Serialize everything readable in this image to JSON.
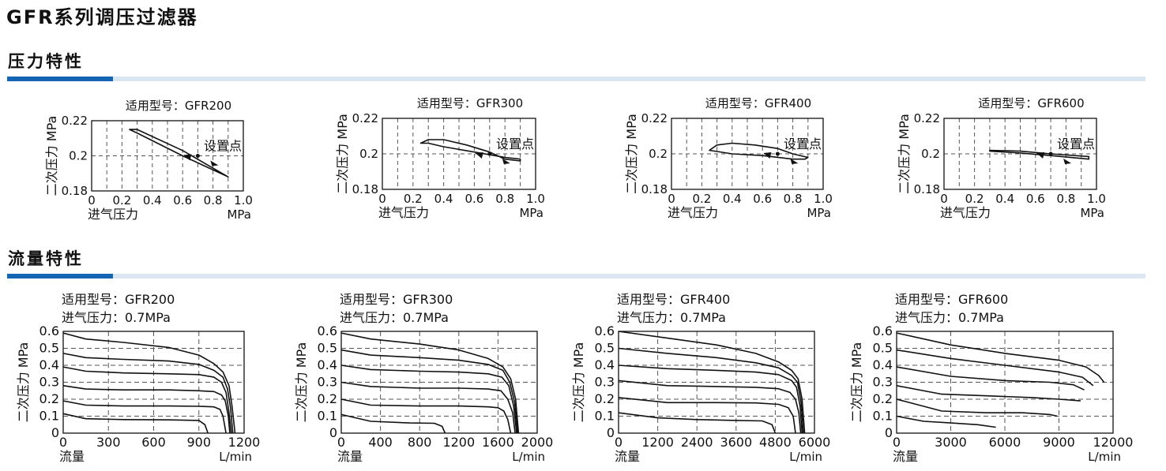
{
  "title": "GFR系列调压过滤器",
  "sections": {
    "pressure": "压力特性",
    "flow": "流量特性"
  },
  "colors": {
    "accent": "#1565b5",
    "bar": "#dbe6f3"
  },
  "chart_data": [
    {
      "type": "line",
      "group": "pressure",
      "model": "适用型号：GFR200",
      "ylabel": "二次压力 MPa",
      "xlabel": "进气压力",
      "xunit": "MPa",
      "xlim": [
        0,
        1.0
      ],
      "ylim": [
        0.18,
        0.22
      ],
      "xticks": [
        "0",
        "0.2",
        "0.4",
        "0.6",
        "0.8",
        "1.0"
      ],
      "yticks": [
        "0.18",
        "0.2",
        "0.22"
      ],
      "annotation": "设置点",
      "set_point": [
        0.7,
        0.2
      ],
      "series": [
        {
          "name": "loop",
          "x": [
            0.9,
            0.6,
            0.3,
            0.25,
            0.3,
            0.6,
            0.9
          ],
          "y": [
            0.188,
            0.2,
            0.213,
            0.215,
            0.215,
            0.203,
            0.188
          ]
        }
      ]
    },
    {
      "type": "line",
      "group": "pressure",
      "model": "适用型号：GFR300",
      "ylabel": "二次压力 MPa",
      "xlabel": "进气压力",
      "xunit": "MPa",
      "xlim": [
        0,
        1.0
      ],
      "ylim": [
        0.18,
        0.22
      ],
      "xticks": [
        "0",
        "0.2",
        "0.4",
        "0.6",
        "0.8",
        "1.0"
      ],
      "yticks": [
        "0.18",
        "0.2",
        "0.22"
      ],
      "annotation": "设置点",
      "set_point": [
        0.7,
        0.2
      ],
      "series": [
        {
          "name": "loop",
          "x": [
            0.25,
            0.3,
            0.4,
            0.55,
            0.7,
            0.8,
            0.9,
            0.9,
            0.8,
            0.6,
            0.4,
            0.3,
            0.25
          ],
          "y": [
            0.206,
            0.208,
            0.208,
            0.205,
            0.201,
            0.197,
            0.196,
            0.197,
            0.198,
            0.201,
            0.204,
            0.206,
            0.206
          ]
        }
      ]
    },
    {
      "type": "line",
      "group": "pressure",
      "model": "适用型号：GFR400",
      "ylabel": "二次压力 MPa",
      "xlabel": "进气压力",
      "xunit": "MPa",
      "xlim": [
        0,
        1.0
      ],
      "ylim": [
        0.18,
        0.22
      ],
      "xticks": [
        "0",
        "0.2",
        "0.4",
        "0.6",
        "0.8",
        "1.0"
      ],
      "yticks": [
        "0.18",
        "0.2",
        "0.22"
      ],
      "annotation": "设置点",
      "set_point": [
        0.7,
        0.2
      ],
      "series": [
        {
          "name": "loop",
          "x": [
            0.25,
            0.3,
            0.4,
            0.55,
            0.7,
            0.8,
            0.9,
            0.88,
            0.8,
            0.6,
            0.4,
            0.25
          ],
          "y": [
            0.202,
            0.205,
            0.206,
            0.205,
            0.203,
            0.2,
            0.198,
            0.197,
            0.197,
            0.199,
            0.2,
            0.202
          ]
        }
      ]
    },
    {
      "type": "line",
      "group": "pressure",
      "model": "适用型号：GFR600",
      "ylabel": "二次压力 MPa",
      "xlabel": "进气压力",
      "xunit": "MPa",
      "xlim": [
        0,
        1.0
      ],
      "ylim": [
        0.18,
        0.22
      ],
      "xticks": [
        "0",
        "0.2",
        "0.4",
        "0.6",
        "0.8",
        "1.0"
      ],
      "yticks": [
        "0.18",
        "0.2",
        "0.22"
      ],
      "annotation": "设置点",
      "set_point": [
        0.7,
        0.2
      ],
      "series": [
        {
          "name": "loop",
          "x": [
            0.3,
            0.5,
            0.7,
            0.95,
            0.95,
            0.7,
            0.5,
            0.3
          ],
          "y": [
            0.2015,
            0.2005,
            0.199,
            0.197,
            0.1985,
            0.2,
            0.2015,
            0.202
          ]
        }
      ]
    },
    {
      "type": "line",
      "group": "flow",
      "model": "适用型号：GFR200",
      "inlet": "进气压力：0.7MPa",
      "ylabel": "二次压力 MPa",
      "xlabel": "流量",
      "xunit": "L/min",
      "xlim": [
        0,
        1200
      ],
      "ylim": [
        0,
        0.6
      ],
      "xticks": [
        "0",
        "300",
        "600",
        "900",
        "1200"
      ],
      "yticks": [
        "0",
        "0.1",
        "0.2",
        "0.3",
        "0.4",
        "0.5",
        "0.6"
      ],
      "series": [
        {
          "name": "0.6",
          "x": [
            0,
            150,
            400,
            700,
            900,
            1000,
            1060,
            1100,
            1120,
            1140
          ],
          "y": [
            0.59,
            0.555,
            0.535,
            0.505,
            0.46,
            0.41,
            0.36,
            0.28,
            0.16,
            0.0
          ]
        },
        {
          "name": "0.5",
          "x": [
            0,
            150,
            400,
            700,
            900,
            1000,
            1060,
            1090,
            1110,
            1125
          ],
          "y": [
            0.47,
            0.445,
            0.435,
            0.425,
            0.405,
            0.37,
            0.33,
            0.26,
            0.15,
            0.0
          ]
        },
        {
          "name": "0.4",
          "x": [
            0,
            150,
            400,
            700,
            900,
            1000,
            1050,
            1080,
            1100,
            1115
          ],
          "y": [
            0.39,
            0.365,
            0.355,
            0.35,
            0.345,
            0.33,
            0.3,
            0.24,
            0.12,
            0.0
          ]
        },
        {
          "name": "0.3",
          "x": [
            0,
            150,
            400,
            700,
            900,
            1000,
            1050,
            1075,
            1095,
            1105
          ],
          "y": [
            0.28,
            0.26,
            0.255,
            0.255,
            0.25,
            0.245,
            0.225,
            0.19,
            0.1,
            0.0
          ]
        },
        {
          "name": "0.2",
          "x": [
            0,
            150,
            400,
            700,
            900,
            1000,
            1040,
            1060,
            1080
          ],
          "y": [
            0.19,
            0.165,
            0.16,
            0.16,
            0.158,
            0.155,
            0.14,
            0.1,
            0.0
          ]
        },
        {
          "name": "0.1",
          "x": [
            0,
            150,
            400,
            700,
            900,
            940,
            960
          ],
          "y": [
            0.115,
            0.085,
            0.08,
            0.078,
            0.075,
            0.05,
            0.0
          ]
        }
      ]
    },
    {
      "type": "line",
      "group": "flow",
      "model": "适用型号：GFR300",
      "inlet": "进气压力：0.7MPa",
      "ylabel": "二次压力 MPa",
      "xlabel": "流量",
      "xunit": "L/min",
      "xlim": [
        0,
        2000
      ],
      "ylim": [
        0,
        0.6
      ],
      "xticks": [
        "0",
        "400",
        "800",
        "1200",
        "1600",
        "2000"
      ],
      "yticks": [
        "0",
        "0.1",
        "0.2",
        "0.3",
        "0.4",
        "0.5",
        "0.6"
      ],
      "series": [
        {
          "name": "0.6",
          "x": [
            0,
            300,
            800,
            1200,
            1500,
            1650,
            1730,
            1780,
            1810
          ],
          "y": [
            0.59,
            0.555,
            0.525,
            0.49,
            0.44,
            0.39,
            0.32,
            0.2,
            0.0
          ]
        },
        {
          "name": "0.5",
          "x": [
            0,
            300,
            800,
            1200,
            1500,
            1650,
            1720,
            1770,
            1800
          ],
          "y": [
            0.49,
            0.46,
            0.445,
            0.43,
            0.405,
            0.37,
            0.3,
            0.18,
            0.0
          ]
        },
        {
          "name": "0.4",
          "x": [
            0,
            300,
            800,
            1200,
            1500,
            1640,
            1710,
            1760,
            1790
          ],
          "y": [
            0.4,
            0.375,
            0.365,
            0.36,
            0.35,
            0.33,
            0.28,
            0.16,
            0.0
          ]
        },
        {
          "name": "0.3",
          "x": [
            0,
            300,
            800,
            1200,
            1500,
            1630,
            1700,
            1750,
            1775
          ],
          "y": [
            0.3,
            0.275,
            0.265,
            0.265,
            0.26,
            0.25,
            0.2,
            0.12,
            0.0
          ]
        },
        {
          "name": "0.2",
          "x": [
            0,
            300,
            800,
            1200,
            1500,
            1600,
            1660,
            1700,
            1730
          ],
          "y": [
            0.2,
            0.165,
            0.16,
            0.16,
            0.155,
            0.15,
            0.13,
            0.08,
            0.0
          ]
        },
        {
          "name": "0.1",
          "x": [
            0,
            300,
            700,
            950,
            1030,
            1060
          ],
          "y": [
            0.11,
            0.07,
            0.06,
            0.058,
            0.04,
            0.0
          ]
        }
      ]
    },
    {
      "type": "line",
      "group": "flow",
      "model": "适用型号：GFR400",
      "inlet": "进气压力：0.7MPa",
      "ylabel": "二次压力 MPa",
      "xlabel": "流量",
      "xunit": "L/min",
      "xlim": [
        0,
        6000
      ],
      "ylim": [
        0,
        0.6
      ],
      "xticks": [
        "0",
        "1200",
        "2400",
        "3600",
        "4800",
        "6000"
      ],
      "yticks": [
        "0",
        "0.1",
        "0.2",
        "0.3",
        "0.4",
        "0.5",
        "0.6"
      ],
      "series": [
        {
          "name": "0.6",
          "x": [
            0,
            1500,
            3000,
            4200,
            4900,
            5300,
            5500,
            5620,
            5700
          ],
          "y": [
            0.6,
            0.56,
            0.52,
            0.47,
            0.42,
            0.37,
            0.32,
            0.2,
            0.0
          ]
        },
        {
          "name": "0.5",
          "x": [
            0,
            1500,
            3000,
            4200,
            4900,
            5300,
            5480,
            5590,
            5660
          ],
          "y": [
            0.5,
            0.47,
            0.445,
            0.415,
            0.385,
            0.34,
            0.3,
            0.18,
            0.0
          ]
        },
        {
          "name": "0.4",
          "x": [
            0,
            1500,
            3000,
            4200,
            4900,
            5300,
            5450,
            5560,
            5620
          ],
          "y": [
            0.4,
            0.38,
            0.37,
            0.36,
            0.345,
            0.31,
            0.27,
            0.16,
            0.0
          ]
        },
        {
          "name": "0.3",
          "x": [
            0,
            1500,
            3000,
            4200,
            4900,
            5250,
            5420,
            5520,
            5580
          ],
          "y": [
            0.31,
            0.28,
            0.275,
            0.27,
            0.262,
            0.24,
            0.2,
            0.12,
            0.0
          ]
        },
        {
          "name": "0.2",
          "x": [
            0,
            1500,
            3000,
            4200,
            4900,
            5200,
            5350,
            5420
          ],
          "y": [
            0.21,
            0.18,
            0.18,
            0.178,
            0.17,
            0.15,
            0.1,
            0.0
          ]
        },
        {
          "name": "0.1",
          "x": [
            0,
            1200,
            2400,
            3600,
            4400,
            4700,
            4800
          ],
          "y": [
            0.12,
            0.09,
            0.08,
            0.075,
            0.072,
            0.05,
            0.0
          ]
        }
      ]
    },
    {
      "type": "line",
      "group": "flow",
      "model": "适用型号：GFR600",
      "inlet": "进气压力：0.7MPa",
      "ylabel": "二次压力 MPa",
      "xlabel": "流量",
      "xunit": "L/min",
      "xlim": [
        0,
        12000
      ],
      "ylim": [
        0,
        0.6
      ],
      "xticks": [
        "0",
        "3000",
        "6000",
        "9000",
        "12000"
      ],
      "yticks": [
        "0",
        "0.1",
        "0.2",
        "0.3",
        "0.4",
        "0.5",
        "0.6"
      ],
      "series": [
        {
          "name": "0.6",
          "x": [
            0,
            3000,
            6000,
            9000,
            10500,
            11200,
            11500
          ],
          "y": [
            0.59,
            0.52,
            0.47,
            0.43,
            0.39,
            0.34,
            0.3
          ]
        },
        {
          "name": "0.5",
          "x": [
            0,
            3000,
            6000,
            9000,
            10300,
            10900
          ],
          "y": [
            0.49,
            0.44,
            0.4,
            0.36,
            0.33,
            0.28
          ]
        },
        {
          "name": "0.4",
          "x": [
            0,
            3000,
            6000,
            8500,
            9800,
            10400
          ],
          "y": [
            0.39,
            0.335,
            0.31,
            0.3,
            0.285,
            0.255
          ]
        },
        {
          "name": "0.3",
          "x": [
            0,
            2500,
            5000,
            7500,
            9000,
            10200
          ],
          "y": [
            0.28,
            0.23,
            0.22,
            0.21,
            0.2,
            0.19
          ]
        },
        {
          "name": "0.2",
          "x": [
            0,
            2500,
            5000,
            7000,
            8500,
            8900
          ],
          "y": [
            0.2,
            0.13,
            0.12,
            0.12,
            0.11,
            0.1
          ]
        },
        {
          "name": "0.1",
          "x": [
            0,
            1500,
            3000,
            4500,
            5500
          ],
          "y": [
            0.1,
            0.07,
            0.06,
            0.05,
            0.035
          ]
        }
      ]
    }
  ]
}
